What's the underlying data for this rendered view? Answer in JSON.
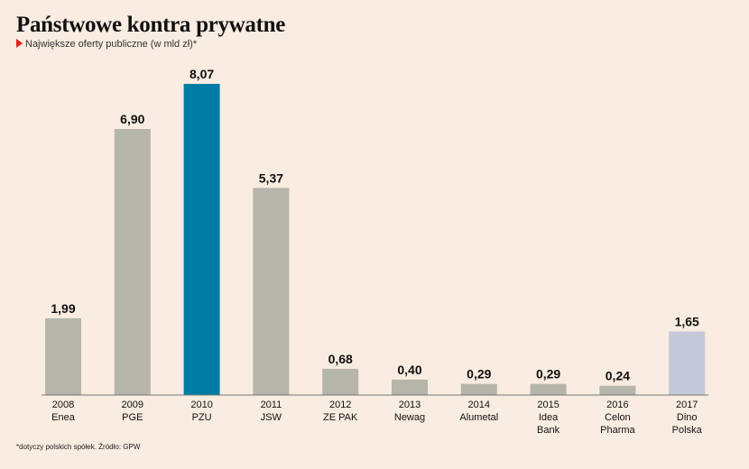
{
  "colors": {
    "background": "#f9ece0",
    "bar_default": "#b6b5aa",
    "bar_highlight": "#007ca4",
    "bar_last": "#c4c9d9",
    "marker": "#dd2222",
    "axis": "#777777"
  },
  "chart_data": {
    "type": "bar",
    "title": "Państwowe kontra prywatne",
    "subtitle": "Największe oferty publiczne (w mld zł)*",
    "footnote": "*dotyczy polskich spółek. Źródło: GPW",
    "xlabel": "",
    "ylabel": "",
    "ylim": [
      0,
      8.07
    ],
    "grid": false,
    "legend": "none",
    "categories": [
      "2008",
      "2009",
      "2010",
      "2011",
      "2012",
      "2013",
      "2014",
      "2015",
      "2016",
      "2017"
    ],
    "category_labels": [
      [
        "2008",
        "Enea"
      ],
      [
        "2009",
        "PGE"
      ],
      [
        "2010",
        "PZU"
      ],
      [
        "2011",
        "JSW"
      ],
      [
        "2012",
        "ZE PAK"
      ],
      [
        "2013",
        "Newag"
      ],
      [
        "2014",
        "Alumetal"
      ],
      [
        "2015",
        "Idea",
        "Bank"
      ],
      [
        "2016",
        "Celon",
        "Pharma"
      ],
      [
        "2017",
        "Dino",
        "Polska"
      ]
    ],
    "values": [
      1.99,
      6.9,
      8.07,
      5.37,
      0.68,
      0.4,
      0.29,
      0.29,
      0.24,
      1.65
    ],
    "value_labels": [
      "1,99",
      "6,90",
      "8,07",
      "5,37",
      "0,68",
      "0,40",
      "0,29",
      "0,29",
      "0,24",
      "1,65"
    ],
    "highlight_index": 2,
    "last_index": 9
  }
}
